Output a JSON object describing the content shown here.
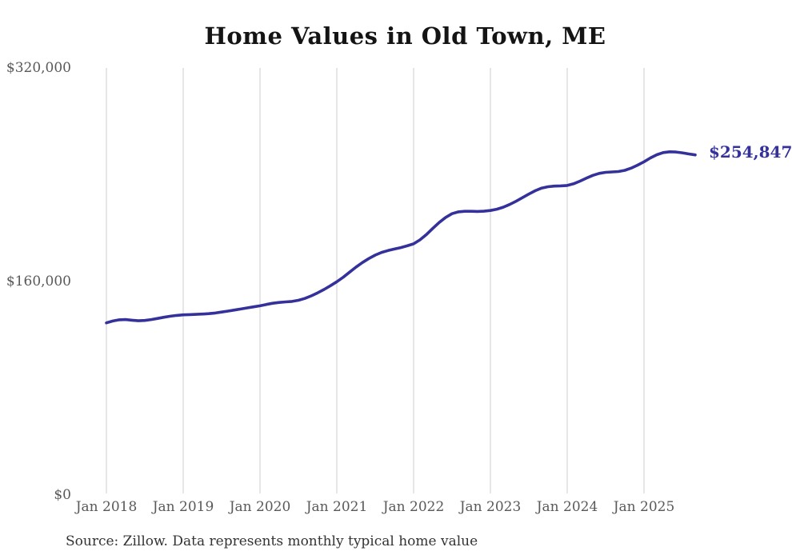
{
  "chart_data": {
    "type": "line",
    "title": "Home Values in Old Town, ME",
    "source_note": "Source: Zillow. Data represents monthly typical home value",
    "end_label": "$254,847",
    "latest_value": 254847,
    "line_color": "#34319b",
    "grid_color": "#cccccc",
    "axis_label_color": "#595959",
    "grid": true,
    "legend": "none",
    "ylim": [
      0,
      320000
    ],
    "y_ticks": [
      {
        "value": 320000,
        "label": "$320,000"
      },
      {
        "value": 160000,
        "label": "$160,000"
      },
      {
        "value": 0,
        "label": "$0"
      }
    ],
    "x_ticks": [
      "Jan 2018",
      "Jan 2019",
      "Jan 2020",
      "Jan 2021",
      "Jan 2022",
      "Jan 2023",
      "Jan 2024",
      "Jan 2025"
    ],
    "x_start_month": "Jan 2018",
    "x_end_month": "Sep 2025",
    "points_per_year": 12,
    "series": [
      {
        "name": "Monthly typical home value",
        "values": [
          129000,
          130400,
          131300,
          131500,
          131000,
          130600,
          130800,
          131500,
          132300,
          133200,
          134000,
          134600,
          135000,
          135200,
          135400,
          135600,
          135900,
          136400,
          137100,
          137800,
          138600,
          139400,
          140200,
          141000,
          141800,
          142800,
          143700,
          144300,
          144700,
          145100,
          145900,
          147300,
          149200,
          151500,
          154000,
          156800,
          159800,
          163200,
          167000,
          170800,
          174200,
          177200,
          179800,
          181800,
          183200,
          184300,
          185400,
          186700,
          188200,
          191200,
          195200,
          199800,
          204200,
          208000,
          210800,
          212200,
          212600,
          212600,
          212500,
          212700,
          213200,
          214200,
          215700,
          217700,
          220100,
          222800,
          225500,
          228000,
          230000,
          231000,
          231500,
          231700,
          232000,
          233200,
          235200,
          237400,
          239500,
          241000,
          241800,
          242100,
          242400,
          243300,
          245000,
          247200,
          249700,
          252600,
          255000,
          256600,
          257200,
          257000,
          256400,
          255600,
          254847
        ]
      }
    ]
  }
}
